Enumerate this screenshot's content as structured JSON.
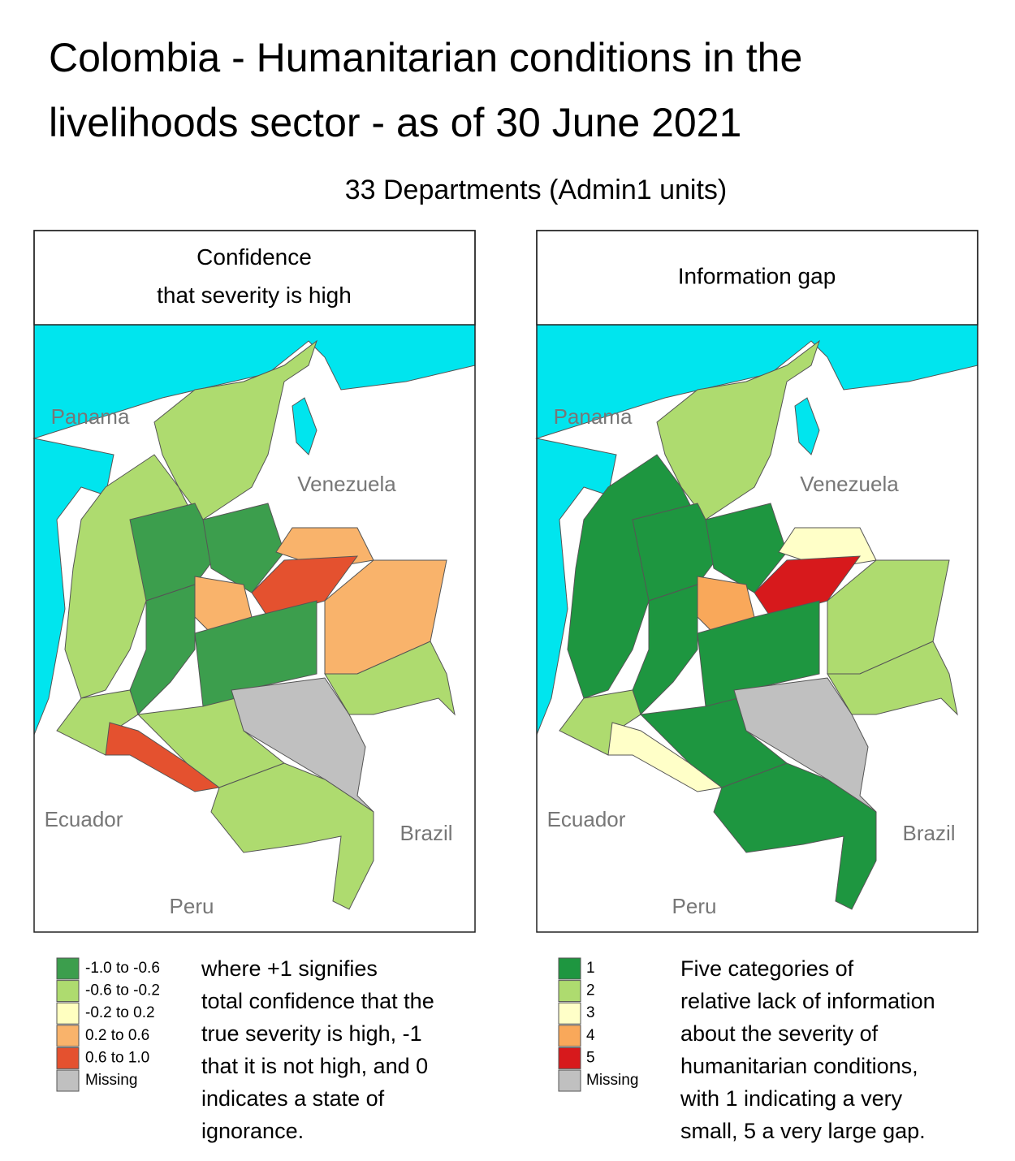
{
  "title": [
    "Colombia - Humanitarian conditions in the",
    "livelihoods sector - as of 30 June 2021"
  ],
  "subtitle": "33 Departments (Admin1 units)",
  "panels": [
    {
      "header": [
        "Confidence",
        "that severity is high"
      ],
      "map_labels": [
        "Panama",
        "Venezuela",
        "Ecuador",
        "Brazil",
        "Peru"
      ],
      "legend": [
        {
          "label": "-1.0 to -0.6",
          "color": "#3c9e4d"
        },
        {
          "label": "-0.6 to -0.2",
          "color": "#aedb6f"
        },
        {
          "label": "-0.2 to 0.2",
          "color": "#ffffc0"
        },
        {
          "label": "0.2 to 0.6",
          "color": "#f9b36b"
        },
        {
          "label": "0.6 to 1.0",
          "color": "#e4512f"
        },
        {
          "label": "Missing",
          "color": "#c0c0c0"
        }
      ],
      "note": [
        "where +1 signifies",
        "total confidence that the",
        "true severity is high, -1",
        "that it is not high, and 0",
        "indicates a state of",
        "ignorance."
      ]
    },
    {
      "header": [
        "Information gap"
      ],
      "map_labels": [
        "Panama",
        "Venezuela",
        "Ecuador",
        "Brazil",
        "Peru"
      ],
      "legend": [
        {
          "label": "1",
          "color": "#1e9640"
        },
        {
          "label": "2",
          "color": "#aedb6f"
        },
        {
          "label": "3",
          "color": "#ffffc8"
        },
        {
          "label": "4",
          "color": "#f9a85a"
        },
        {
          "label": "5",
          "color": "#d7191c"
        },
        {
          "label": "Missing",
          "color": "#c0c0c0"
        }
      ],
      "note": [
        "Five categories of",
        "relative lack of information",
        "about the severity of",
        "humanitarian conditions,",
        "with 1 indicating a very",
        "small, 5 a very large gap."
      ]
    }
  ]
}
